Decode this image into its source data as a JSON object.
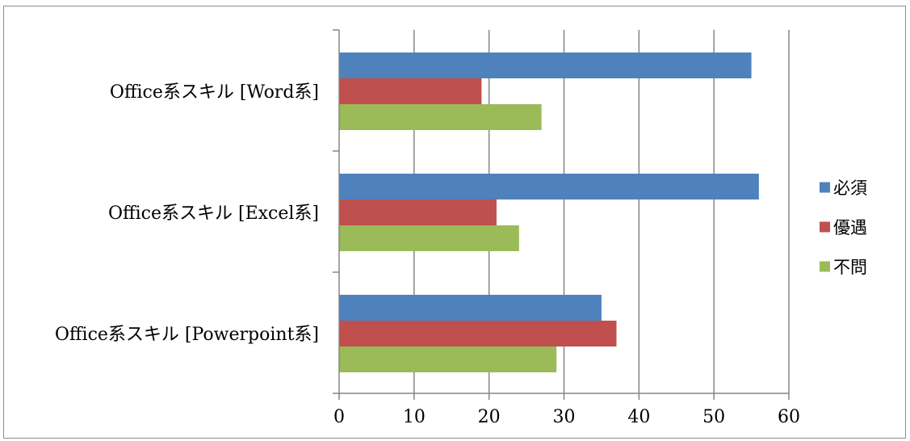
{
  "chart_data": {
    "type": "bar",
    "orientation": "horizontal",
    "categories": [
      "Office系スキル [Word系]",
      "Office系スキル [Excel系]",
      "Office系スキル [Powerpoint系]"
    ],
    "series": [
      {
        "name": "必須",
        "values": [
          55,
          56,
          35
        ],
        "color": "#4f81bd"
      },
      {
        "name": "優遇",
        "values": [
          19,
          21,
          37
        ],
        "color": "#c0504d"
      },
      {
        "name": "不問",
        "values": [
          27,
          24,
          29
        ],
        "color": "#9bbb59"
      }
    ],
    "xlim": [
      0,
      60
    ],
    "xticks": [
      "0",
      "10",
      "20",
      "30",
      "40",
      "50",
      "60"
    ],
    "grid": true,
    "legend": "right",
    "title": "",
    "xlabel": "",
    "ylabel": ""
  }
}
